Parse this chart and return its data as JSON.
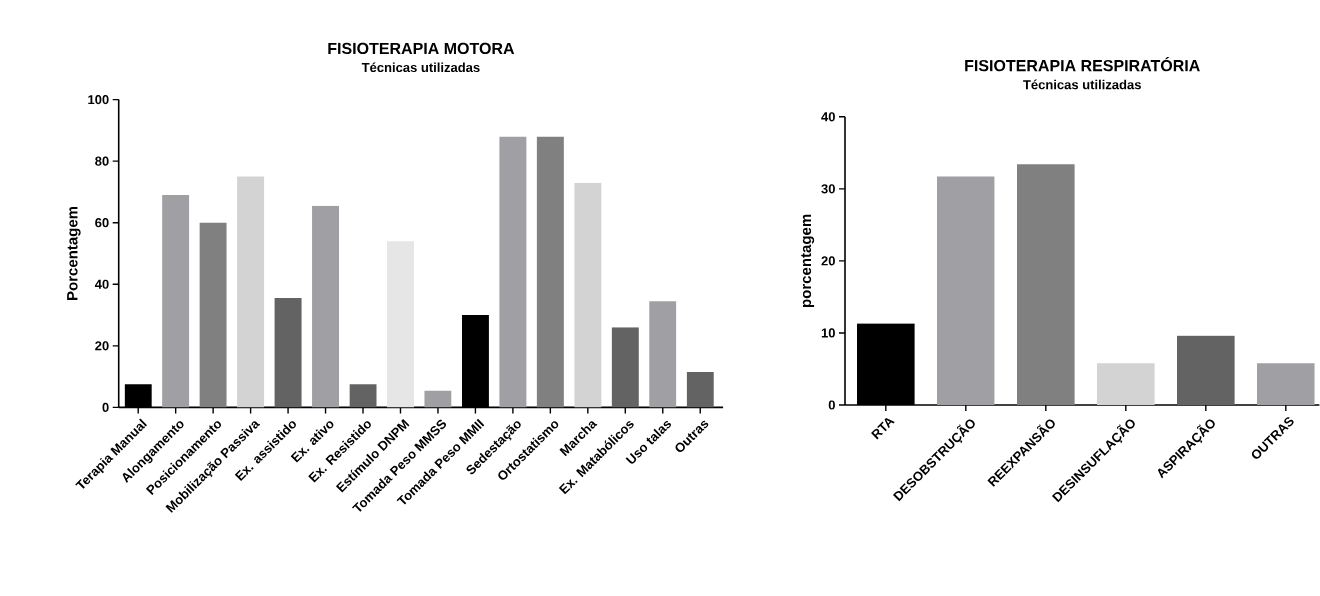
{
  "chart_data": [
    {
      "type": "bar",
      "title": "FISIOTERAPIA MOTORA",
      "subtitle": "Técnicas utilizadas",
      "ylabel": "Porcentagem",
      "categories": [
        "Terapia Manual",
        "Alongamento",
        "Posicionamento",
        "Mobilização Passiva",
        "Ex. assistido",
        "Ex. ativo",
        "Ex. Resistido",
        "Estímulo DNPM",
        "Tomada Peso MMSS",
        "Tomada Peso MMII",
        "Sedestação",
        "Ortostatismo",
        "Marcha",
        "Ex. Matabólicos",
        "Uso talas",
        "Outras"
      ],
      "values": [
        7.5,
        69,
        60,
        75,
        35.5,
        65.5,
        7.5,
        54,
        5.5,
        30,
        88,
        88,
        73,
        26,
        34.5,
        11.5
      ],
      "colors": [
        "#000000",
        "#a0a0a4",
        "#808080",
        "#d3d3d3",
        "#636363",
        "#a0a0a4",
        "#636363",
        "#e6e6e6",
        "#a0a0a4",
        "#000000",
        "#a0a0a4",
        "#808080",
        "#d3d3d3",
        "#636363",
        "#a0a0a4",
        "#636363"
      ],
      "ylim": [
        0,
        100
      ],
      "yticks": [
        0,
        20,
        40,
        60,
        80,
        100
      ]
    },
    {
      "type": "bar",
      "title": "FISIOTERAPIA RESPIRATÓRIA",
      "subtitle": "Técnicas utilizadas",
      "ylabel": "porcentagem",
      "categories": [
        "RTA",
        "DESOBSTRUÇÃO",
        "REEXPANSÃO",
        "DESINSUFLAÇÃO",
        "ASPIRAÇÃO",
        "OUTRAS"
      ],
      "values": [
        11.3,
        31.7,
        33.4,
        5.8,
        9.6,
        5.8
      ],
      "colors": [
        "#000000",
        "#a0a0a4",
        "#808080",
        "#d3d3d3",
        "#636363",
        "#a0a0a4"
      ],
      "ylim": [
        0,
        40
      ],
      "yticks": [
        0,
        10,
        20,
        30,
        40
      ]
    }
  ]
}
